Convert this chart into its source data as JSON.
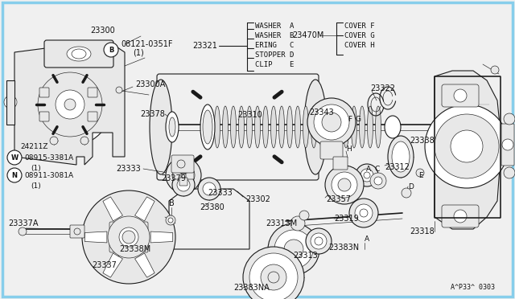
{
  "bg_color": "#f0f0f0",
  "border_color": "#87ceeb",
  "line_color": "#1a1a1a",
  "text_color": "#111111",
  "fill_light": "#e8e8e8",
  "fill_white": "#ffffff",
  "lw_main": 0.8,
  "lw_thin": 0.45,
  "lw_thick": 1.2,
  "fig_w": 6.4,
  "fig_h": 3.72,
  "dpi": 100,
  "parts": [
    "23300",
    "08121-0351F",
    "(1)",
    "23300A",
    "23378",
    "23379",
    "23333",
    "23333",
    "23380",
    "23302",
    "23310",
    "23357",
    "23313M",
    "23313",
    "23383NA",
    "23383N",
    "23319",
    "23312",
    "23343",
    "23322",
    "23338",
    "23318",
    "24211Z",
    "23337A",
    "23337",
    "23338M",
    "23321",
    "23470M",
    "B"
  ],
  "legend": [
    "WASHER  A",
    "WASHER  B",
    "ERING   C",
    "STOPPER D",
    "CLIP    E"
  ],
  "covers": [
    "COVER F",
    "COVER G",
    "COVER H"
  ],
  "ref_code": "A^P33^ 0303"
}
